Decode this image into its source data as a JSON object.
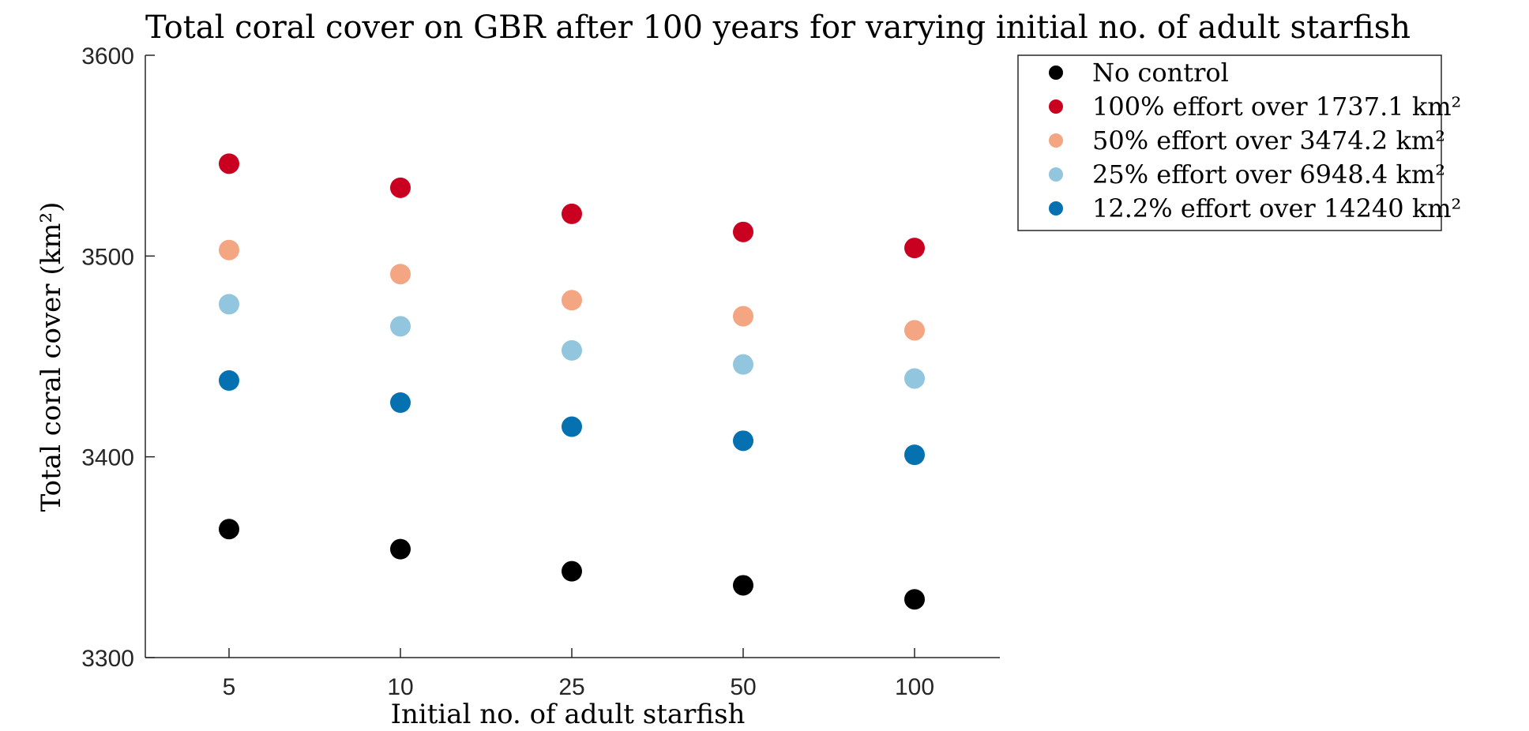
{
  "chart_data": {
    "type": "scatter",
    "title": "Total coral cover on GBR after 100 years for varying initial no. of adult starfish",
    "xlabel": "Initial no. of adult starfish",
    "ylabel": "Total coral cover (km²)",
    "categories": [
      "5",
      "10",
      "25",
      "50",
      "100"
    ],
    "ylim": [
      3300,
      3600
    ],
    "yticks": [
      "3300",
      "3400",
      "3500",
      "3600"
    ],
    "grid": false,
    "legend_position": "top-right",
    "series": [
      {
        "name": "No control",
        "color": "#000000",
        "values": [
          3364,
          3354,
          3343,
          3336,
          3329
        ]
      },
      {
        "name": "100% effort over 1737.1 km²",
        "color": "#ca0020",
        "values": [
          3546,
          3534,
          3521,
          3512,
          3504
        ]
      },
      {
        "name": "50% effort over 3474.2 km²",
        "color": "#f4a582",
        "values": [
          3503,
          3491,
          3478,
          3470,
          3463
        ]
      },
      {
        "name": "25% effort over 6948.4 km²",
        "color": "#92c5de",
        "values": [
          3476,
          3465,
          3453,
          3446,
          3439
        ]
      },
      {
        "name": "12.2% effort over 14240 km²",
        "color": "#0571b0",
        "values": [
          3438,
          3427,
          3415,
          3408,
          3401
        ]
      }
    ]
  }
}
